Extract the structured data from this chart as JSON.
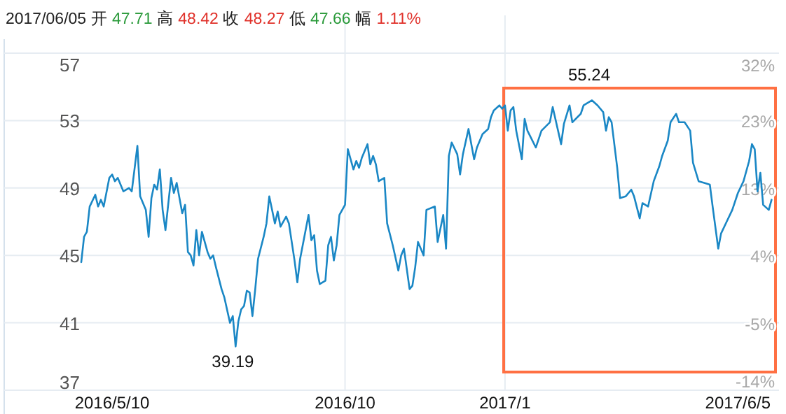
{
  "chart_data": {
    "type": "line",
    "annotations": [
      "2017/06/05 开 47.71 高 48.42 收 48.27 低 47.66 幅 1.11%",
      "55.24",
      "39.19"
    ],
    "categories": [
      null,
      null,
      null,
      null,
      null,
      null,
      null,
      null,
      null,
      null,
      null,
      "2016/5/10",
      null,
      null,
      null,
      null,
      null,
      null,
      null,
      null,
      null,
      null,
      null,
      null,
      null,
      null,
      null,
      null,
      null,
      null,
      null,
      null,
      null,
      null,
      null,
      null,
      null,
      null,
      null,
      null,
      null,
      null,
      null,
      null,
      null,
      null,
      null,
      null,
      null,
      null,
      null,
      null,
      null,
      null,
      null,
      null,
      null,
      null,
      null,
      null,
      null,
      null,
      null,
      null,
      null,
      null,
      null,
      null,
      null,
      null,
      null,
      null,
      null,
      null,
      null,
      null,
      null,
      null,
      null,
      null,
      null,
      null,
      null,
      null,
      null,
      null,
      null,
      null,
      null,
      null,
      null,
      null,
      null,
      null,
      "2016/10",
      null,
      null,
      null,
      null,
      null,
      null,
      null,
      null,
      null,
      null,
      null,
      null,
      null,
      null,
      null,
      null,
      null,
      null,
      null,
      null,
      null,
      null,
      null,
      null,
      null,
      null,
      null,
      null,
      null,
      null,
      null,
      null,
      null,
      null,
      null,
      null,
      null,
      null,
      null,
      null,
      null,
      null,
      null,
      null,
      null,
      null,
      null,
      null,
      null,
      null,
      null,
      null,
      null,
      null,
      null,
      null,
      "2017/1",
      null,
      null,
      null,
      null,
      null,
      null,
      null,
      null,
      null,
      null,
      null,
      null,
      null,
      null,
      null,
      null,
      null,
      null,
      null,
      null,
      null,
      null,
      null,
      null,
      null,
      null,
      null,
      null,
      null,
      null,
      null,
      null,
      null,
      null,
      null,
      null,
      null,
      null,
      null,
      null,
      null,
      null,
      null,
      null,
      null,
      null,
      null,
      null,
      null,
      null,
      null,
      null,
      null,
      null,
      null,
      null,
      null,
      null,
      null,
      null,
      null,
      null,
      null,
      null,
      null,
      null,
      null,
      null,
      null,
      null,
      null,
      null,
      null,
      null,
      null,
      null,
      null,
      null,
      null,
      null,
      null,
      null,
      "2017/6/5",
      null,
      null,
      null,
      null,
      null,
      null,
      null,
      null,
      null,
      null,
      null,
      null
    ],
    "series": [
      {
        "color": "#1a87c5",
        "values": [
          44.6,
          46.1,
          46.4,
          47.9,
          null,
          48.6,
          47.9,
          48.3,
          47.9,
          null,
          49.6,
          49.8,
          49.4,
          49.6,
          null,
          48.8,
          null,
          49.0,
          48.8,
          null,
          51.5,
          48.5,
          null,
          47.7,
          46.1,
          48.4,
          49.2,
          48.9,
          50.1,
          47.7,
          46.5,
          null,
          49.6,
          48.7,
          49.3,
          null,
          47.5,
          48.0,
          45.2,
          45.0,
          44.4,
          46.5,
          45.0,
          46.4,
          null,
          45.2,
          44.8,
          45.0,
          44.3,
          null,
          43.0,
          42.5,
          null,
          41.0,
          41.4,
          39.6,
          41.1,
          41.8,
          42.0,
          42.9,
          42.8,
          41.4,
          43.0,
          44.8,
          null,
          46.1,
          46.9,
          48.5,
          null,
          46.9,
          47.6,
          46.7,
          null,
          47.3,
          46.9,
          null,
          44.7,
          43.4,
          44.8,
          null,
          null,
          47.4,
          45.9,
          46.2,
          44.1,
          43.3,
          null,
          43.5,
          45.6,
          46.1,
          44.7,
          45.6,
          47.4,
          null,
          48.0,
          51.3,
          null,
          50.1,
          50.6,
          50.2,
          50.8,
          null,
          51.6,
          50.4,
          50.9,
          50.4,
          49.4,
          null,
          49.6,
          46.9,
          null,
          45.6,
          null,
          44.1,
          45.0,
          45.4,
          null,
          43.0,
          43.2,
          44.3,
          45.8,
          null,
          45.0,
          47.7,
          null,
          null,
          47.9,
          45.8,
          null,
          47.4,
          45.4,
          50.9,
          51.7,
          null,
          51.0,
          49.8,
          51.0,
          null,
          52.5,
          null,
          50.7,
          51.4,
          null,
          52.2,
          null,
          52.5,
          53.2,
          53.6,
          null,
          53.9,
          53.7,
          53.9,
          52.4,
          53.6,
          53.8,
          52.4,
          null,
          50.7,
          53.1,
          52.4,
          null,
          null,
          51.4,
          null,
          52.4,
          null,
          null,
          52.9,
          53.8,
          null,
          null,
          51.6,
          52.8,
          null,
          53.9,
          52.9,
          null,
          null,
          53.4,
          53.9,
          null,
          null,
          54.2,
          null,
          53.9,
          null,
          53.5,
          52.4,
          53.2,
          52.9,
          null,
          50.2,
          48.4,
          null,
          48.5,
          null,
          48.9,
          48.5,
          null,
          47.2,
          48.1,
          null,
          47.9,
          null,
          49.4,
          null,
          50.3,
          50.9,
          null,
          51.8,
          52.9,
          null,
          53.4,
          52.9,
          null,
          52.9,
          null,
          52.4,
          50.5,
          null,
          49.4,
          null,
          49.3,
          null,
          49.2,
          47.9,
          null,
          45.4,
          46.3,
          null,
          47.0,
          null,
          47.7,
          null,
          48.7,
          null,
          49.4,
          null,
          50.6,
          51.6,
          51.3,
          48.8,
          49.9,
          48.0,
          null,
          47.7,
          48.3
        ]
      }
    ],
    "ylim": [
      37,
      57
    ],
    "yticks": [
      37,
      41,
      45,
      49,
      53,
      57
    ],
    "y2lim": [
      -14.35,
      31.94
    ],
    "y2ticks": [
      {
        "value": -14.35,
        "label": "-14%"
      },
      {
        "value": -5.09,
        "label": "-5%"
      },
      {
        "value": 4.17,
        "label": "4%"
      },
      {
        "value": 13.43,
        "label": "13%"
      },
      {
        "value": 22.69,
        "label": "23%"
      },
      {
        "value": 31.94,
        "label": "32%"
      }
    ],
    "grid": true,
    "marker": "none",
    "line_style": "solid"
  }
}
